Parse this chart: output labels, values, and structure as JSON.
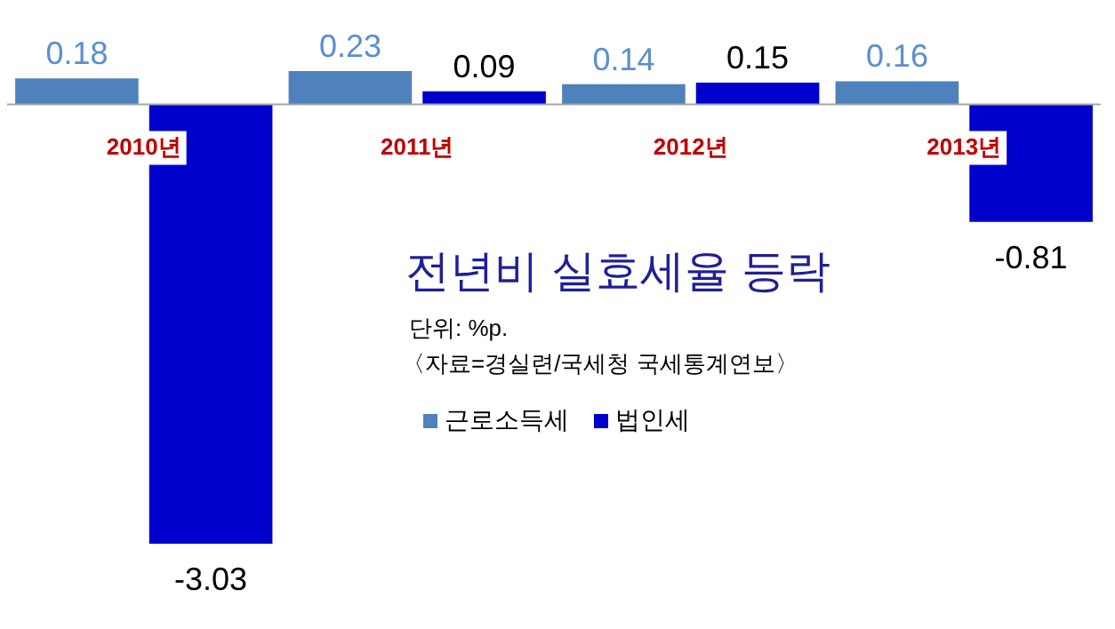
{
  "chart_data": {
    "type": "bar",
    "title": "전년비 실효세율 등락",
    "subtitle": "단위: %p.",
    "annotations": [
      "〈자료=경실련/국세청 국세통계연보〉"
    ],
    "categories": [
      "2010년",
      "2011년",
      "2012년",
      "2013년"
    ],
    "series": [
      {
        "name": "근로소득세",
        "color": "#4f81bd",
        "values": [
          0.18,
          0.23,
          0.14,
          0.16
        ]
      },
      {
        "name": "법인세",
        "color": "#0000cc",
        "values": [
          -3.03,
          0.09,
          0.15,
          -0.81
        ]
      }
    ],
    "data_labels": true,
    "legend": "center"
  }
}
